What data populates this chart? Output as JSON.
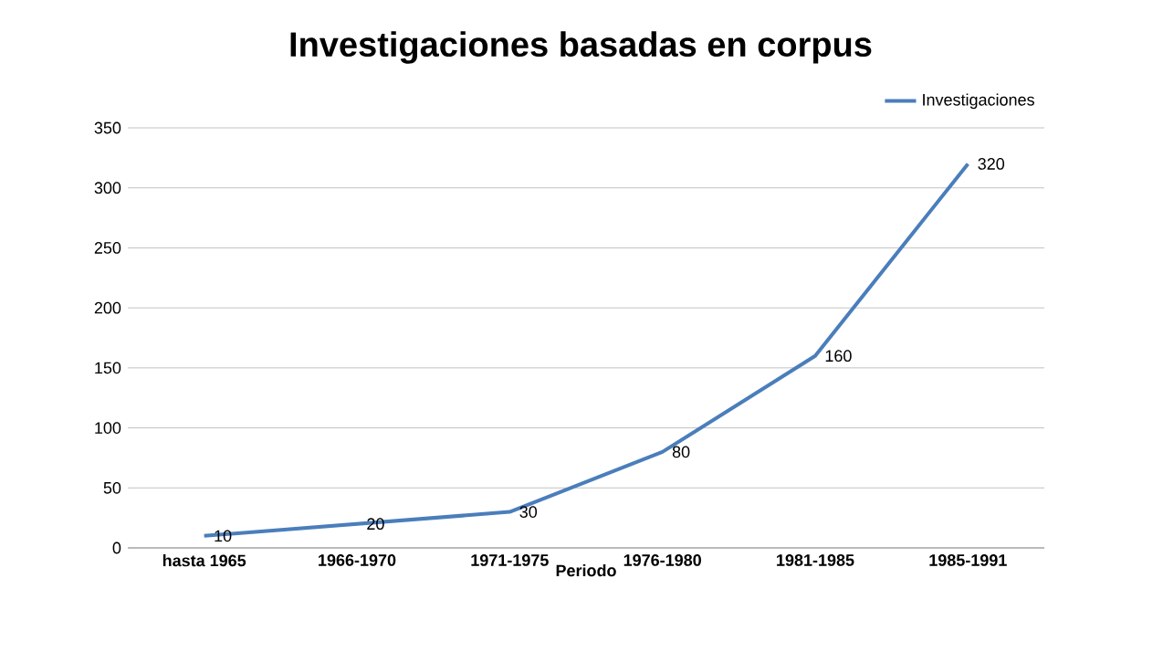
{
  "chart_data": {
    "type": "line",
    "title": "Investigaciones basadas en corpus",
    "xlabel": "Periodo",
    "categories": [
      "hasta 1965",
      "1966-1970",
      "1971-1975",
      "1976-1980",
      "1981-1985",
      "1985-1991"
    ],
    "series": [
      {
        "name": "Investigaciones",
        "color": "#4a7ebb",
        "values": [
          10,
          20,
          30,
          80,
          160,
          320
        ]
      }
    ],
    "ylim": [
      0,
      350
    ],
    "yticks": [
      0,
      50,
      100,
      150,
      200,
      250,
      300,
      350
    ],
    "grid": "y",
    "legend": "top right",
    "data_labels": true,
    "marker": "none",
    "line_style": "solid"
  }
}
